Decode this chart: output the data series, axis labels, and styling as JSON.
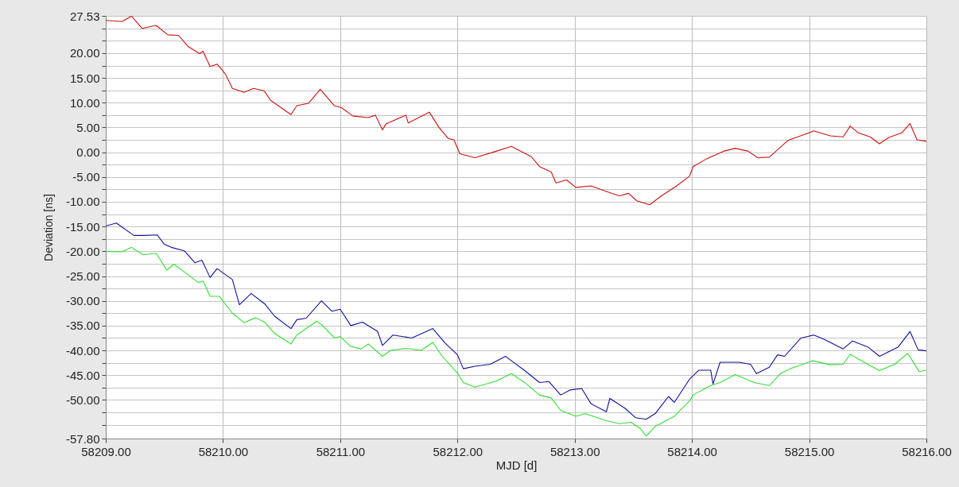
{
  "chart_data": {
    "type": "line",
    "xlabel": "MJD [d]",
    "ylabel": "Deviation [ns]",
    "xlim": [
      58209,
      58216
    ],
    "xticks": [
      {
        "value": 58209,
        "label": "58209.00"
      },
      {
        "value": 58210,
        "label": "58210.00"
      },
      {
        "value": 58211,
        "label": "58211.00"
      },
      {
        "value": 58212,
        "label": "58212.00"
      },
      {
        "value": 58213,
        "label": "58213.00"
      },
      {
        "value": 58214,
        "label": "58214.00"
      },
      {
        "value": 58215,
        "label": "58215.00"
      },
      {
        "value": 58216,
        "label": "58216.00"
      }
    ],
    "ylim": [
      -57.8,
      27.53
    ],
    "yticks": [
      27.53,
      {
        "value": 25,
        "label": null
      },
      {
        "value": 22.5,
        "label": null
      },
      {
        "value": 20,
        "label": "20.00"
      },
      {
        "value": 17.5,
        "label": null
      },
      {
        "value": 15,
        "label": "15.00"
      },
      {
        "value": 12.5,
        "label": null
      },
      {
        "value": 10,
        "label": "10.00"
      },
      {
        "value": 7.5,
        "label": null
      },
      {
        "value": 5,
        "label": "5.00"
      },
      {
        "value": 2.5,
        "label": null
      },
      {
        "value": 0,
        "label": "0.00"
      },
      {
        "value": -2.5,
        "label": null
      },
      {
        "value": -5,
        "label": "-5.00"
      },
      {
        "value": -7.5,
        "label": null
      },
      {
        "value": -10,
        "label": "-10.00"
      },
      {
        "value": -12.5,
        "label": null
      },
      {
        "value": -15,
        "label": "-15.00"
      },
      {
        "value": -17.5,
        "label": null
      },
      {
        "value": -20,
        "label": "-20.00"
      },
      {
        "value": -22.5,
        "label": null
      },
      {
        "value": -25,
        "label": "-25.00"
      },
      {
        "value": -27.5,
        "label": null
      },
      {
        "value": -30,
        "label": "-30.00"
      },
      {
        "value": -32.5,
        "label": null
      },
      {
        "value": -35,
        "label": "-35.00"
      },
      {
        "value": -37.5,
        "label": null
      },
      {
        "value": -40,
        "label": "-40.00"
      },
      {
        "value": -42.5,
        "label": null
      },
      {
        "value": -45,
        "label": "-45.00"
      },
      {
        "value": -47.5,
        "label": null
      },
      {
        "value": -50,
        "label": "-50.00"
      },
      {
        "value": -52.5,
        "label": null
      },
      {
        "value": -55,
        "label": null
      },
      {
        "value": -57.8,
        "label": "-57.80"
      }
    ],
    "grid": true,
    "line_style": "solid",
    "series": [
      {
        "color": "#cc1111",
        "x": [
          58209.0,
          58209.14,
          58209.22,
          58209.31,
          58209.43,
          58209.53,
          58209.62,
          58209.7,
          58209.8,
          58209.83,
          58209.89,
          58209.95,
          58210.02,
          58210.08,
          58210.18,
          58210.26,
          58210.35,
          58210.41,
          58210.58,
          58210.63,
          58210.73,
          58210.83,
          58210.95,
          58211.01,
          58211.11,
          58211.24,
          58211.3,
          58211.36,
          58211.39,
          58211.56,
          58211.58,
          58211.76,
          58211.84,
          58211.92,
          58211.97,
          58212.02,
          58212.15,
          58212.33,
          58212.46,
          58212.63,
          58212.7,
          58212.8,
          58212.84,
          58212.93,
          58213.01,
          58213.14,
          58213.27,
          58213.38,
          58213.46,
          58213.53,
          58213.64,
          58213.74,
          58213.87,
          58213.98,
          58214.01,
          58214.12,
          58214.27,
          58214.37,
          58214.48,
          58214.56,
          58214.66,
          58214.82,
          58214.95,
          58215.04,
          58215.18,
          58215.29,
          58215.35,
          58215.42,
          58215.52,
          58215.6,
          58215.68,
          58215.79,
          58215.86,
          58215.92,
          58216.0
        ],
        "values": [
          26.6,
          26.4,
          27.5,
          25.0,
          25.6,
          23.7,
          23.6,
          21.4,
          19.9,
          20.4,
          17.3,
          17.8,
          15.8,
          12.9,
          12.1,
          12.9,
          12.4,
          10.4,
          7.6,
          9.4,
          9.9,
          12.7,
          9.4,
          9.0,
          7.3,
          7.0,
          7.5,
          4.5,
          5.7,
          7.5,
          5.9,
          8.1,
          5.1,
          2.8,
          2.5,
          -0.3,
          -1.1,
          0.2,
          1.2,
          -0.9,
          -2.9,
          -4.0,
          -6.2,
          -5.6,
          -7.1,
          -6.8,
          -7.9,
          -8.8,
          -8.3,
          -9.8,
          -10.6,
          -8.8,
          -6.8,
          -4.8,
          -2.9,
          -1.4,
          0.2,
          0.8,
          0.2,
          -1.1,
          -1.0,
          2.4,
          3.5,
          4.3,
          3.3,
          3.1,
          5.3,
          3.9,
          3.1,
          1.7,
          3.0,
          3.9,
          5.8,
          2.5,
          2.2
        ]
      },
      {
        "color": "#10109a",
        "x": [
          58209.0,
          58209.09,
          58209.24,
          58209.32,
          58209.44,
          58209.5,
          58209.56,
          58209.67,
          58209.76,
          58209.82,
          58209.89,
          58209.95,
          58210.08,
          58210.14,
          58210.24,
          58210.36,
          58210.44,
          58210.58,
          58210.63,
          58210.71,
          58210.84,
          58210.93,
          58211.0,
          58211.09,
          58211.19,
          58211.32,
          58211.36,
          58211.45,
          58211.61,
          58211.79,
          58211.89,
          58212.0,
          58212.05,
          58212.15,
          58212.28,
          58212.41,
          58212.46,
          58212.57,
          58212.7,
          58212.78,
          58212.88,
          58212.96,
          58213.06,
          58213.14,
          58213.27,
          58213.3,
          58213.43,
          58213.52,
          58213.61,
          58213.69,
          58213.8,
          58213.85,
          58213.98,
          58214.06,
          58214.16,
          58214.18,
          58214.24,
          58214.4,
          58214.5,
          58214.55,
          58214.66,
          58214.73,
          58214.79,
          58214.93,
          58215.04,
          58215.13,
          58215.29,
          58215.37,
          58215.5,
          58215.6,
          58215.76,
          58215.86,
          58215.93,
          58216.0
        ],
        "values": [
          -14.9,
          -14.3,
          -16.8,
          -16.8,
          -16.7,
          -18.6,
          -19.2,
          -19.9,
          -22.3,
          -21.8,
          -25.3,
          -23.5,
          -25.7,
          -30.8,
          -28.5,
          -30.7,
          -33.1,
          -35.6,
          -33.8,
          -33.5,
          -30.0,
          -32.1,
          -31.7,
          -35.0,
          -34.3,
          -36.2,
          -39.0,
          -36.9,
          -37.5,
          -35.6,
          -38.4,
          -40.9,
          -43.7,
          -43.2,
          -42.8,
          -41.2,
          -42.1,
          -44.0,
          -46.5,
          -46.3,
          -49.0,
          -48.0,
          -47.7,
          -50.8,
          -52.4,
          -49.7,
          -51.7,
          -53.6,
          -53.9,
          -52.7,
          -49.3,
          -50.5,
          -45.8,
          -44.0,
          -44.0,
          -46.8,
          -42.4,
          -42.4,
          -42.8,
          -44.7,
          -43.4,
          -40.9,
          -41.2,
          -37.5,
          -36.9,
          -37.8,
          -39.7,
          -38.1,
          -39.3,
          -41.2,
          -39.3,
          -36.2,
          -39.9,
          -40.1
        ]
      },
      {
        "color": "#33dd33",
        "x": [
          58209.0,
          58209.14,
          58209.22,
          58209.32,
          58209.43,
          58209.52,
          58209.58,
          58209.69,
          58209.79,
          58209.83,
          58209.89,
          58209.97,
          58210.08,
          58210.18,
          58210.28,
          58210.36,
          58210.44,
          58210.58,
          58210.63,
          58210.8,
          58210.85,
          58210.95,
          58211.0,
          58211.09,
          58211.18,
          58211.24,
          58211.36,
          58211.43,
          58211.56,
          58211.69,
          58211.79,
          58211.87,
          58212.0,
          58212.05,
          58212.15,
          58212.33,
          58212.46,
          58212.59,
          58212.7,
          58212.8,
          58212.88,
          58213.01,
          58213.09,
          58213.27,
          58213.38,
          58213.48,
          58213.56,
          58213.61,
          58213.69,
          58213.85,
          58213.98,
          58214.01,
          58214.16,
          58214.24,
          58214.37,
          58214.53,
          58214.66,
          58214.76,
          58214.84,
          58215.03,
          58215.18,
          58215.29,
          58215.35,
          58215.5,
          58215.6,
          58215.73,
          58215.84,
          58215.94,
          58216.0
        ],
        "values": [
          -20.0,
          -20.1,
          -19.2,
          -20.7,
          -20.4,
          -23.8,
          -22.6,
          -24.5,
          -26.3,
          -26.0,
          -29.1,
          -29.1,
          -32.5,
          -34.4,
          -33.4,
          -34.4,
          -36.6,
          -38.7,
          -36.9,
          -34.1,
          -35.0,
          -37.5,
          -37.2,
          -39.2,
          -39.7,
          -38.7,
          -41.2,
          -40.0,
          -39.6,
          -40.0,
          -38.4,
          -41.2,
          -44.6,
          -46.5,
          -47.4,
          -46.2,
          -44.7,
          -46.8,
          -49.0,
          -49.6,
          -52.1,
          -53.3,
          -52.8,
          -54.2,
          -54.8,
          -54.5,
          -55.8,
          -57.3,
          -55.3,
          -53.3,
          -50.2,
          -49.0,
          -47.1,
          -46.5,
          -44.9,
          -46.5,
          -47.1,
          -44.6,
          -43.7,
          -42.1,
          -42.9,
          -42.8,
          -40.8,
          -42.8,
          -44.1,
          -42.8,
          -40.6,
          -44.3,
          -44.0
        ]
      }
    ]
  }
}
